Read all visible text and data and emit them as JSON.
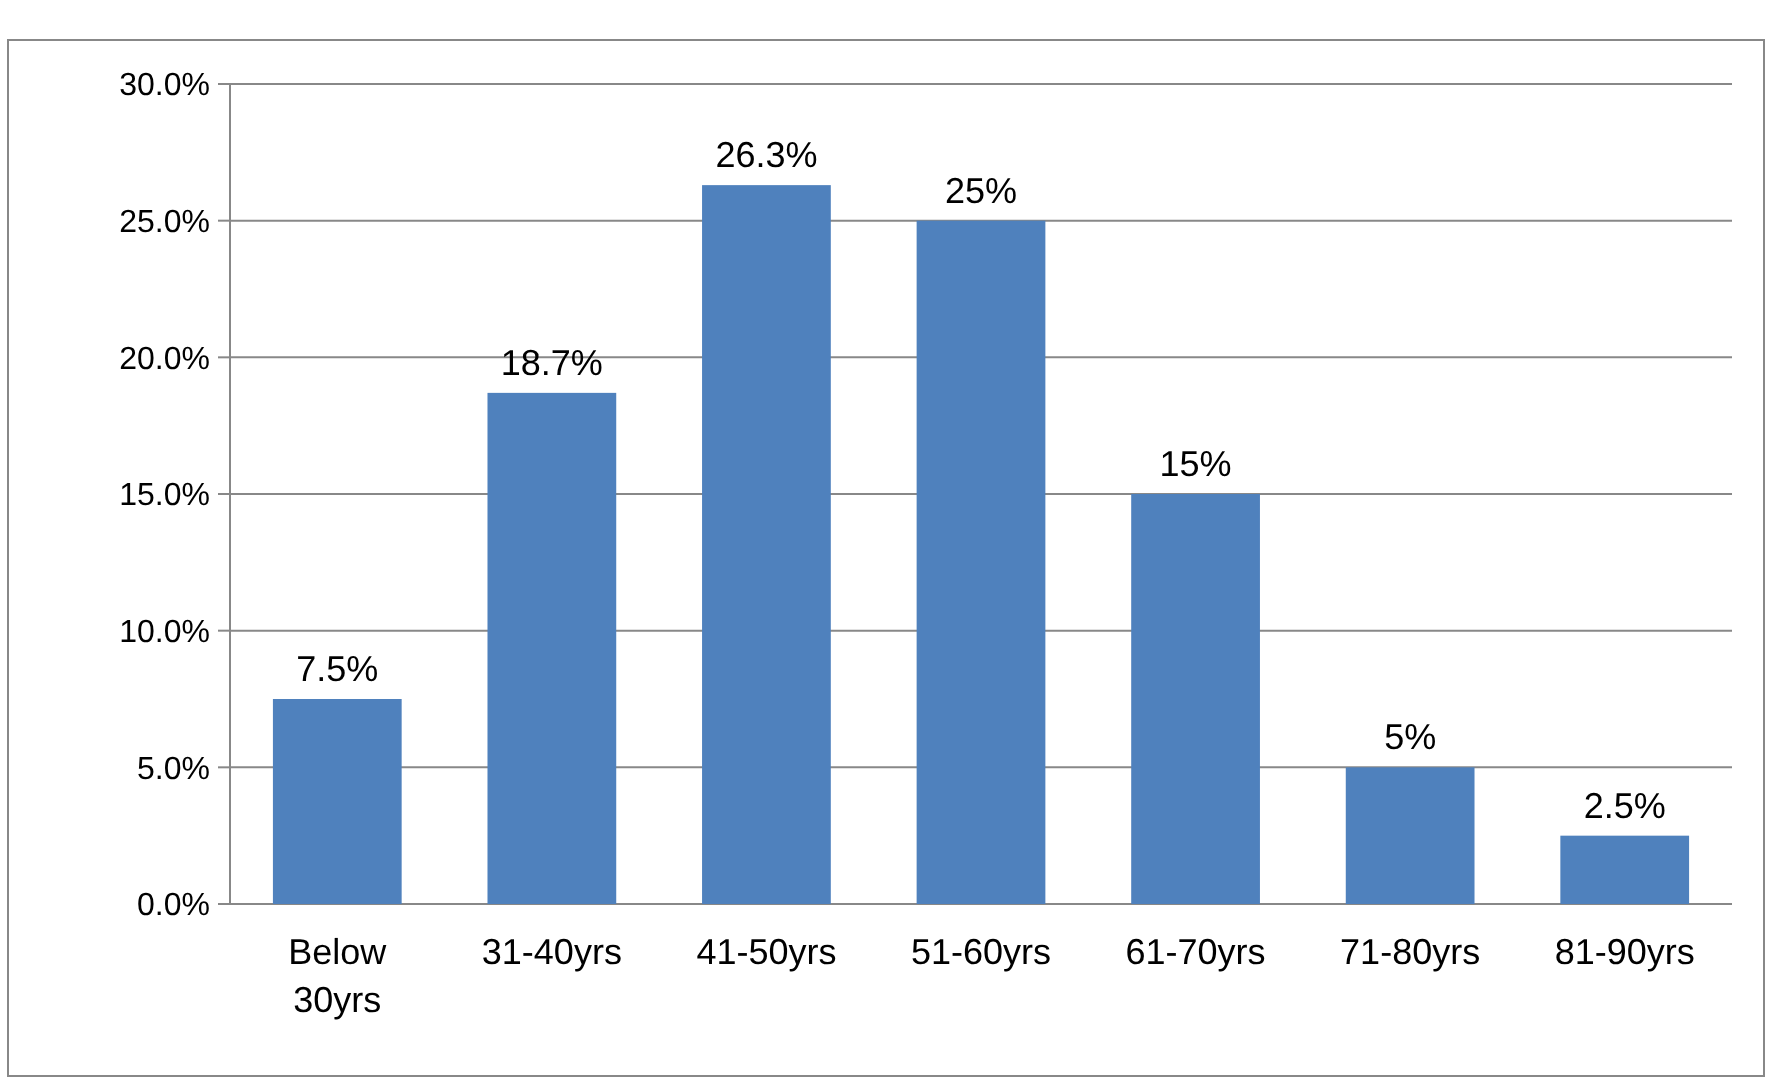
{
  "chart_data": {
    "type": "bar",
    "categories": [
      "Below 30yrs",
      "31-40yrs",
      "41-50yrs",
      "51-60yrs",
      "61-70yrs",
      "71-80yrs",
      "81-90yrs"
    ],
    "values": [
      7.5,
      18.7,
      26.3,
      25,
      15,
      5,
      2.5
    ],
    "value_labels": [
      "7.5%",
      "18.7%",
      "26.3%",
      "25%",
      "15%",
      "5%",
      "2.5%"
    ],
    "color": "#4f81bd",
    "ylim": [
      0,
      30
    ],
    "yticks": [
      {
        "value": 0,
        "label": "0.0%"
      },
      {
        "value": 5,
        "label": "5.0%"
      },
      {
        "value": 10,
        "label": "10.0%"
      },
      {
        "value": 15,
        "label": "15.0%"
      },
      {
        "value": 20,
        "label": "20.0%"
      },
      {
        "value": 25,
        "label": "25.0%"
      },
      {
        "value": 30,
        "label": "30.0%"
      }
    ],
    "grid": "y"
  }
}
